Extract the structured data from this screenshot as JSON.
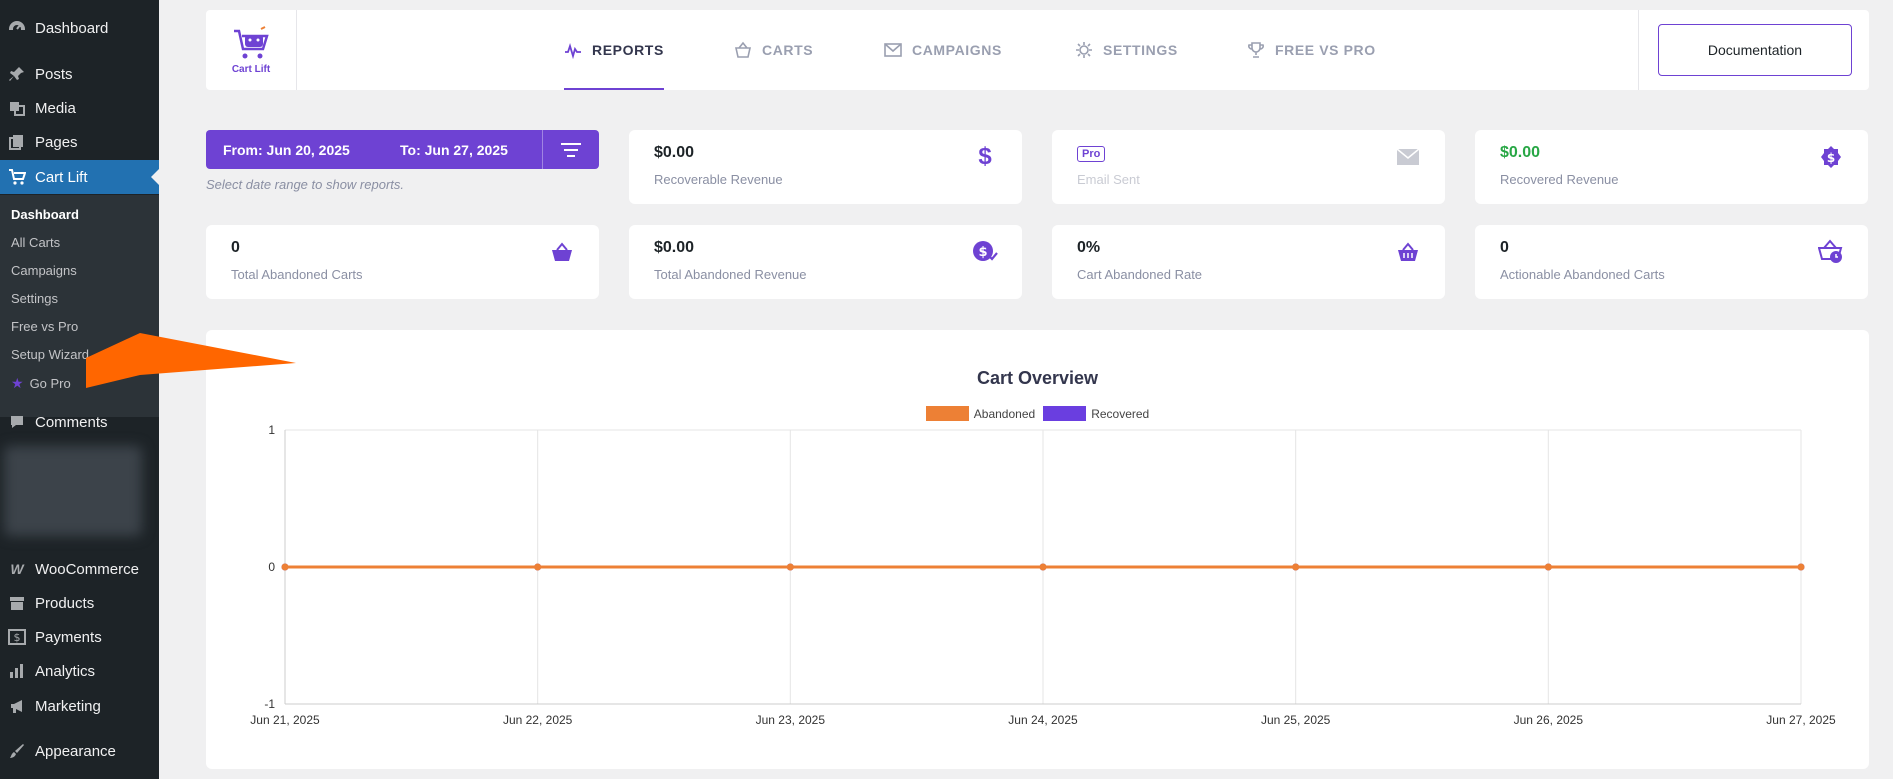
{
  "sidebar": {
    "items": [
      {
        "label": "Dashboard",
        "icon": "dashboard-icon"
      },
      {
        "label": "Posts",
        "icon": "pin-icon"
      },
      {
        "label": "Media",
        "icon": "media-icon"
      },
      {
        "label": "Pages",
        "icon": "pages-icon"
      },
      {
        "label": "Cart Lift",
        "icon": "cart-icon"
      },
      {
        "label": "Comments",
        "icon": "comment-icon"
      },
      {
        "label": "WooCommerce",
        "icon": "woo-icon"
      },
      {
        "label": "Products",
        "icon": "archive-icon"
      },
      {
        "label": "Payments",
        "icon": "dollar-icon"
      },
      {
        "label": "Analytics",
        "icon": "bar-chart-icon"
      },
      {
        "label": "Marketing",
        "icon": "megaphone-icon"
      },
      {
        "label": "Appearance",
        "icon": "brush-icon"
      }
    ],
    "submenu": [
      "Dashboard",
      "All Carts",
      "Campaigns",
      "Settings",
      "Free vs Pro",
      "Setup Wizard",
      "Go Pro"
    ]
  },
  "header": {
    "logo_text": "Cart Lift",
    "tabs": [
      {
        "label": "REPORTS",
        "icon": "pulse-icon"
      },
      {
        "label": "CARTS",
        "icon": "basket-icon"
      },
      {
        "label": "CAMPAIGNS",
        "icon": "mail-icon"
      },
      {
        "label": "SETTINGS",
        "icon": "gear-icon"
      },
      {
        "label": "FREE VS PRO",
        "icon": "trophy-icon"
      }
    ],
    "doc_button": "Documentation"
  },
  "date_filter": {
    "from": "From: Jun 20, 2025",
    "to": "To: Jun 27, 2025",
    "hint": "Select date range to show reports."
  },
  "cards": [
    {
      "value": "$0.00",
      "label": "Recoverable Revenue",
      "icon": "dollar-icon"
    },
    {
      "value": "",
      "badge": "Pro",
      "label": "Email Sent",
      "icon": "envelope-icon"
    },
    {
      "value": "$0.00",
      "label": "Recovered Revenue",
      "icon": "dollar-badge-icon"
    },
    {
      "value": "0",
      "label": "Total Abandoned Carts",
      "icon": "basket-icon"
    },
    {
      "value": "$0.00",
      "label": "Total Abandoned Revenue",
      "icon": "dollar-check-icon"
    },
    {
      "value": "0%",
      "label": "Cart Abandoned Rate",
      "icon": "basket-icon"
    },
    {
      "value": "0",
      "label": "Actionable Abandoned Carts",
      "icon": "basket-clock-icon"
    }
  ],
  "colors": {
    "accent": "#6e42d3",
    "abandoned": "#ed8035",
    "recovered": "#6a3ee0",
    "green": "#28a745",
    "arrow": "#ff6600"
  },
  "chart_data": {
    "type": "line",
    "title": "Cart Overview",
    "x": [
      "Jun 21, 2025",
      "Jun 22, 2025",
      "Jun 23, 2025",
      "Jun 24, 2025",
      "Jun 25, 2025",
      "Jun 26, 2025",
      "Jun 27, 2025"
    ],
    "series": [
      {
        "name": "Abandoned",
        "values": [
          0,
          0,
          0,
          0,
          0,
          0,
          0
        ]
      },
      {
        "name": "Recovered",
        "values": [
          0,
          0,
          0,
          0,
          0,
          0,
          0
        ]
      }
    ],
    "ylim": [
      -1,
      1
    ],
    "yticks": [
      "1",
      "0",
      "-1"
    ],
    "grid": true,
    "legend": "top-center"
  }
}
